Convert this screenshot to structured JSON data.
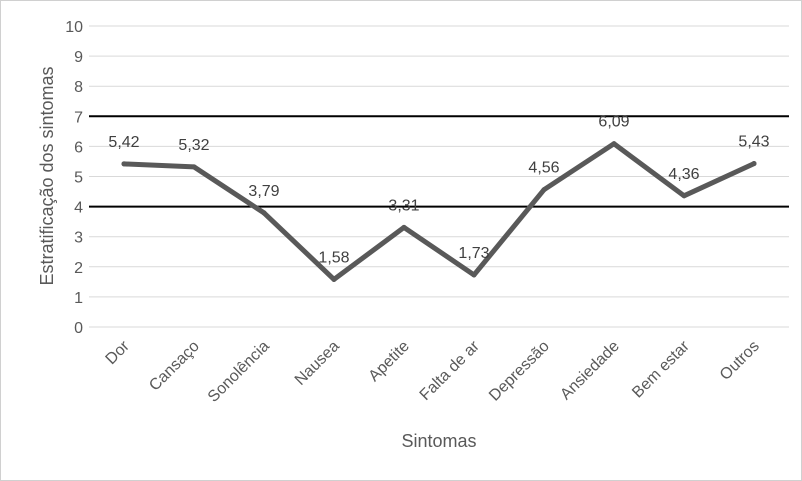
{
  "chart_data": {
    "type": "line",
    "categories": [
      "Dor",
      "Cansaço",
      "Sonolência",
      "Nausea",
      "Apetite",
      "Falta de ar",
      "Depressão",
      "Ansiedade",
      "Bem estar",
      "Outros"
    ],
    "series": [
      {
        "values": [
          5.42,
          5.32,
          3.79,
          1.58,
          3.31,
          1.73,
          4.56,
          6.09,
          4.36,
          5.43
        ],
        "data_labels": [
          "5,42",
          "5,32",
          "3,79",
          "1,58",
          "3,31",
          "1,73",
          "4,56",
          "6,09",
          "4,36",
          "5,43"
        ],
        "color": "#595959"
      }
    ],
    "reference_lines": [
      7,
      4
    ],
    "reference_line_color": "#000000",
    "xlabel": "Sintomas",
    "ylabel": "Estratificação dos sintomas",
    "ylim": [
      0,
      10
    ],
    "yticks": [
      0,
      1,
      2,
      3,
      4,
      5,
      6,
      7,
      8,
      9,
      10
    ],
    "grid": true,
    "grid_color": "#d9d9d9",
    "legend": "none"
  }
}
